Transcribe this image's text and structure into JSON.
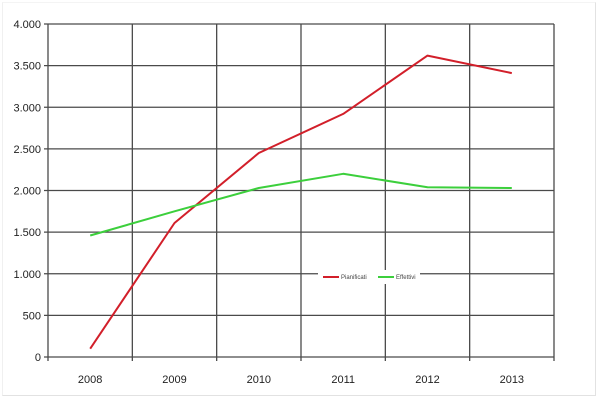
{
  "chart_data": {
    "type": "line",
    "title": "",
    "xlabel": "",
    "ylabel": "",
    "categories": [
      "2008",
      "2009",
      "2010",
      "2011",
      "2012",
      "2013"
    ],
    "series": [
      {
        "name": "Pianificati",
        "color": "#d21f2a",
        "values": [
          100,
          1610,
          2450,
          2920,
          3620,
          3410
        ]
      },
      {
        "name": "Effettivi",
        "color": "#3ccf3c",
        "values": [
          1460,
          1750,
          2030,
          2200,
          2040,
          2030
        ]
      }
    ],
    "ylim": [
      0,
      4000
    ],
    "yticks": [
      0,
      500,
      1000,
      1500,
      2000,
      2500,
      3000,
      3500,
      4000
    ],
    "ytick_labels": [
      "0",
      "500",
      "1.000",
      "1.500",
      "2.000",
      "2.500",
      "3.000",
      "3.500",
      "4.000"
    ],
    "grid": true,
    "legend_position": "inside-lower-center"
  },
  "legend": {
    "items": [
      {
        "label": "Pianificati",
        "color": "#d21f2a"
      },
      {
        "label": "Effettivi",
        "color": "#3ccf3c"
      }
    ]
  }
}
